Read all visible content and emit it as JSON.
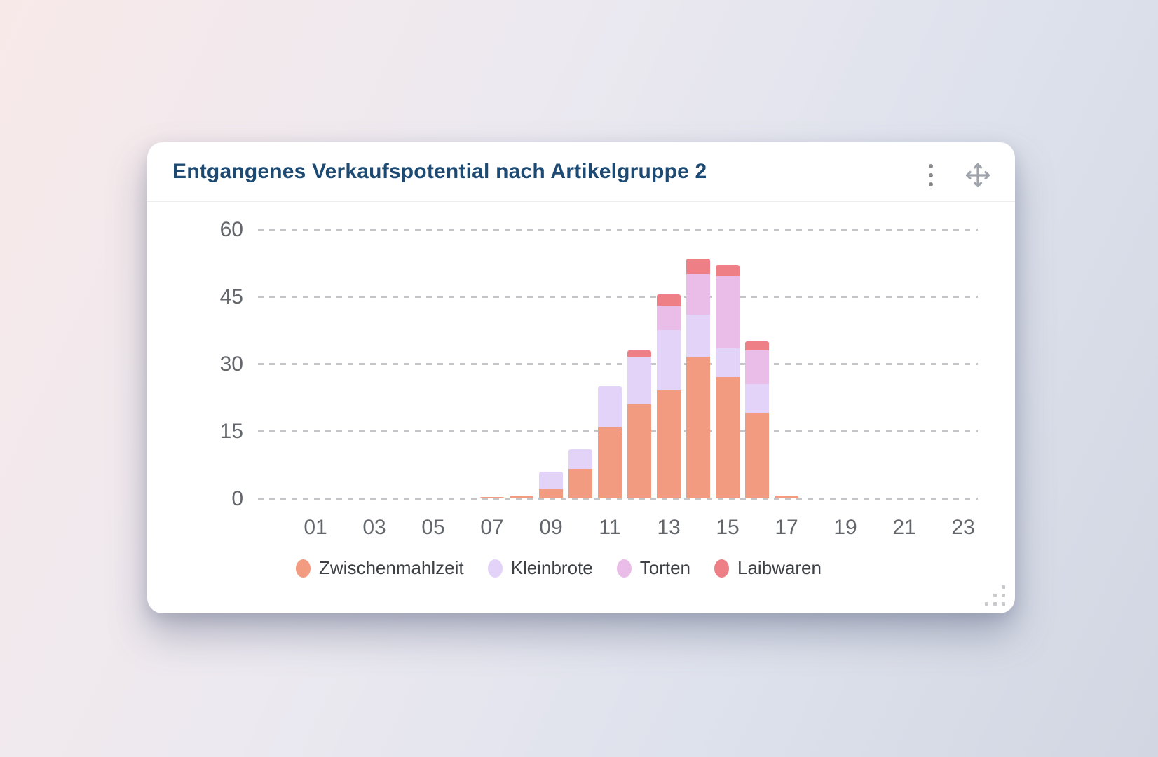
{
  "header": {
    "title": "Entgangenes Verkaufspotential nach Artikelgruppe 2"
  },
  "icons": {
    "menu": "kebab-vertical-icon",
    "move": "move-cross-icon",
    "resize": "resize-grip-icon"
  },
  "chart_data": {
    "type": "bar",
    "stacked": true,
    "title": "Entgangenes Verkaufspotential nach Artikelgruppe 2",
    "x": [
      "01",
      "02",
      "03",
      "04",
      "05",
      "06",
      "07",
      "08",
      "09",
      "10",
      "11",
      "12",
      "13",
      "14",
      "15",
      "16",
      "17",
      "18",
      "19",
      "20",
      "21",
      "22",
      "23"
    ],
    "x_tick_labels": [
      "01",
      "03",
      "05",
      "07",
      "09",
      "11",
      "13",
      "15",
      "17",
      "19",
      "21",
      "23"
    ],
    "yticks": [
      0,
      15,
      30,
      45,
      60
    ],
    "ylim": [
      0,
      60
    ],
    "grid": "horizontal-dashed",
    "legend_position": "bottom",
    "series": [
      {
        "name": "Zwischenmahlzeit",
        "color": "#F29B81",
        "values": [
          0,
          0,
          0,
          0,
          0,
          0,
          0.3,
          0.7,
          2,
          6.5,
          16,
          21,
          24,
          31.5,
          27,
          19,
          0.6,
          0,
          0,
          0,
          0,
          0,
          0
        ]
      },
      {
        "name": "Kleinbrote",
        "color": "#E3D3F8",
        "values": [
          0,
          0,
          0,
          0,
          0,
          0,
          0,
          0,
          4,
          4.5,
          9,
          10.5,
          13.5,
          9.5,
          6.5,
          6.5,
          0,
          0,
          0,
          0,
          0,
          0,
          0
        ]
      },
      {
        "name": "Torten",
        "color": "#E9BDE8",
        "values": [
          0,
          0,
          0,
          0,
          0,
          0,
          0,
          0,
          0,
          0,
          0,
          0,
          5.5,
          9,
          16,
          7.5,
          0,
          0,
          0,
          0,
          0,
          0,
          0
        ]
      },
      {
        "name": "Laibwaren",
        "color": "#EF7F86",
        "values": [
          0,
          0,
          0,
          0,
          0,
          0,
          0,
          0,
          0,
          0,
          0,
          1.5,
          2.5,
          3.5,
          2.5,
          2,
          0,
          0,
          0,
          0,
          0,
          0,
          0
        ]
      }
    ]
  }
}
